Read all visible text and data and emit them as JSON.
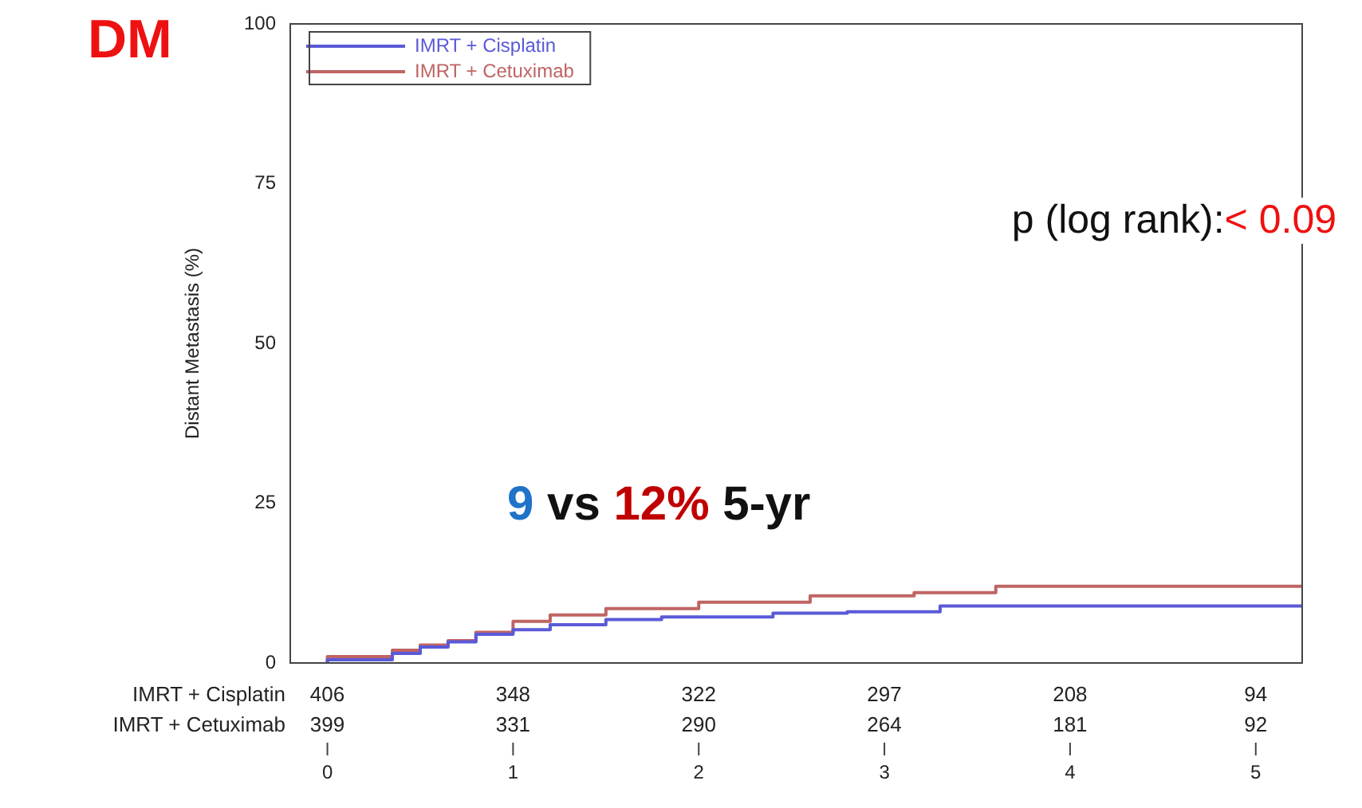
{
  "chart_data": {
    "type": "step",
    "title": "DM",
    "ylabel": "Distant Metastasis (%)",
    "xlim": [
      -0.2,
      5.25
    ],
    "xticks": [
      0,
      1,
      2,
      3,
      4,
      5
    ],
    "ylim": [
      0,
      100
    ],
    "yticks": [
      0,
      25,
      50,
      75,
      100
    ],
    "grid": false,
    "legend": "top left",
    "marker": "none",
    "line_style": "solid",
    "series": [
      {
        "name": "IMRT + Cisplatin",
        "color": "#5a5ad8",
        "x": [
          0,
          0.35,
          0.5,
          0.65,
          0.8,
          1.0,
          1.2,
          1.5,
          1.8,
          2.4,
          2.8,
          3.3,
          4.86,
          5.25
        ],
        "values": [
          0,
          0.5,
          1.5,
          2.5,
          3.3,
          4.5,
          5.2,
          6.0,
          6.8,
          7.2,
          7.8,
          8.0,
          8.9,
          8.9
        ]
      },
      {
        "name": "IMRT + Cetuximab",
        "color": "#c06464",
        "x": [
          0,
          0.35,
          0.5,
          0.65,
          0.8,
          1.0,
          1.2,
          1.5,
          2.0,
          2.6,
          3.16,
          3.6,
          4.25,
          5.25
        ],
        "values": [
          0,
          1.0,
          2.0,
          2.8,
          3.5,
          4.8,
          6.5,
          7.5,
          8.5,
          9.5,
          10.5,
          11.0,
          12.0,
          12.0
        ]
      }
    ],
    "annotations": [
      "9 vs 12% 5-yr",
      "p (log rank):< 0.09",
      "IMRT + Cisplatin",
      "406",
      "348",
      "322",
      "297",
      "208",
      "94",
      "IMRT + Cetuximab",
      "399",
      "331",
      "290",
      "264",
      "181",
      "92"
    ]
  }
}
